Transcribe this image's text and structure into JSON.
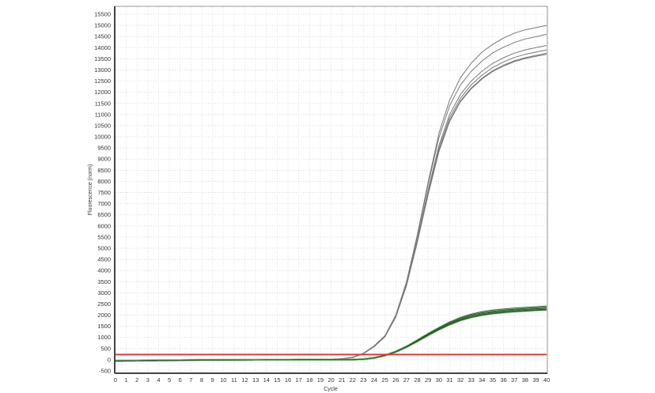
{
  "chart_data": {
    "type": "line",
    "title": "",
    "xlabel": "Cycle",
    "ylabel": "Fluorescence (norm)",
    "xlim": [
      0,
      40
    ],
    "ylim": [
      -500,
      15500
    ],
    "x_ticks": [
      0,
      1,
      2,
      3,
      4,
      5,
      6,
      7,
      8,
      9,
      10,
      11,
      12,
      13,
      14,
      15,
      16,
      17,
      18,
      19,
      20,
      21,
      22,
      23,
      24,
      25,
      26,
      27,
      28,
      29,
      30,
      31,
      32,
      33,
      34,
      35,
      36,
      37,
      38,
      39,
      40
    ],
    "y_ticks": [
      -500,
      0,
      500,
      1000,
      1500,
      2000,
      2500,
      3000,
      3500,
      4000,
      4500,
      5000,
      5500,
      6000,
      6500,
      7000,
      7500,
      8000,
      8500,
      9000,
      9500,
      10000,
      10500,
      11000,
      11500,
      12000,
      12500,
      13000,
      13500,
      14000,
      14500,
      15000,
      15500
    ],
    "grid": true,
    "threshold": {
      "value": 230,
      "color": "#e23a3a"
    },
    "colors": {
      "high_group": "#7a7a7a",
      "low_group": "#2f5f2f",
      "low_halo": "#9fd89f"
    },
    "x": [
      0,
      1,
      2,
      3,
      4,
      5,
      6,
      7,
      8,
      9,
      10,
      11,
      12,
      13,
      14,
      15,
      16,
      17,
      18,
      19,
      20,
      21,
      22,
      23,
      24,
      25,
      26,
      27,
      28,
      29,
      30,
      31,
      32,
      33,
      34,
      35,
      36,
      37,
      38,
      39,
      40
    ],
    "series": [
      {
        "group": "high",
        "values": [
          -60,
          -55,
          -50,
          -45,
          -40,
          -35,
          -30,
          -25,
          -20,
          -15,
          -10,
          -8,
          -5,
          -3,
          0,
          0,
          0,
          0,
          0,
          5,
          10,
          40,
          110,
          290,
          620,
          1080,
          2000,
          3500,
          5600,
          7950,
          10150,
          11650,
          12650,
          13300,
          13800,
          14150,
          14430,
          14650,
          14800,
          14900,
          15000
        ]
      },
      {
        "group": "high",
        "values": [
          -60,
          -55,
          -50,
          -45,
          -40,
          -35,
          -30,
          -25,
          -20,
          -15,
          -10,
          -8,
          -5,
          -3,
          0,
          0,
          0,
          0,
          0,
          5,
          10,
          40,
          110,
          285,
          610,
          1070,
          1990,
          3480,
          5550,
          7850,
          9950,
          11400,
          12320,
          12940,
          13400,
          13770,
          14020,
          14230,
          14390,
          14490,
          14600
        ]
      },
      {
        "group": "high",
        "values": [
          -60,
          -55,
          -50,
          -45,
          -40,
          -35,
          -30,
          -25,
          -20,
          -15,
          -10,
          -8,
          -5,
          -3,
          0,
          0,
          0,
          0,
          0,
          5,
          10,
          40,
          105,
          280,
          600,
          1050,
          1950,
          3400,
          5400,
          7600,
          9600,
          11000,
          11900,
          12500,
          12950,
          13300,
          13550,
          13750,
          13900,
          14000,
          14100
        ]
      },
      {
        "group": "high",
        "values": [
          -60,
          -55,
          -50,
          -45,
          -40,
          -35,
          -30,
          -25,
          -20,
          -15,
          -10,
          -8,
          -5,
          -3,
          0,
          0,
          0,
          0,
          0,
          5,
          10,
          40,
          105,
          275,
          595,
          1040,
          1930,
          3370,
          5340,
          7500,
          9470,
          10850,
          11730,
          12330,
          12770,
          13110,
          13360,
          13560,
          13700,
          13800,
          13900
        ]
      },
      {
        "group": "high",
        "values": [
          -60,
          -55,
          -50,
          -45,
          -40,
          -35,
          -30,
          -25,
          -20,
          -15,
          -10,
          -8,
          -5,
          -3,
          0,
          0,
          0,
          0,
          0,
          5,
          10,
          40,
          100,
          270,
          590,
          1030,
          1920,
          3340,
          5280,
          7420,
          9370,
          10730,
          11610,
          12190,
          12630,
          12970,
          13210,
          13410,
          13550,
          13650,
          13750
        ]
      },
      {
        "group": "high",
        "values": [
          -60,
          -55,
          -50,
          -45,
          -40,
          -35,
          -30,
          -25,
          -20,
          -15,
          -10,
          -8,
          -5,
          -3,
          0,
          0,
          0,
          0,
          0,
          5,
          10,
          40,
          100,
          270,
          585,
          1030,
          1910,
          3330,
          5260,
          7390,
          9330,
          10690,
          11570,
          12150,
          12590,
          12930,
          13170,
          13370,
          13510,
          13610,
          13700
        ]
      },
      {
        "group": "low",
        "values": [
          -50,
          -45,
          -40,
          -35,
          -30,
          -25,
          -20,
          -18,
          -15,
          -12,
          -10,
          -8,
          -6,
          -5,
          -4,
          -3,
          -2,
          -1,
          0,
          0,
          0,
          0,
          5,
          25,
          85,
          200,
          370,
          600,
          880,
          1170,
          1440,
          1690,
          1890,
          2040,
          2150,
          2220,
          2270,
          2310,
          2340,
          2370,
          2400
        ]
      },
      {
        "group": "low",
        "values": [
          -50,
          -45,
          -40,
          -35,
          -30,
          -25,
          -20,
          -18,
          -15,
          -12,
          -10,
          -8,
          -6,
          -5,
          -4,
          -3,
          -2,
          -1,
          0,
          0,
          0,
          0,
          5,
          22,
          82,
          195,
          362,
          590,
          860,
          1140,
          1410,
          1650,
          1850,
          2000,
          2100,
          2170,
          2220,
          2260,
          2290,
          2320,
          2350
        ]
      },
      {
        "group": "low",
        "values": [
          -50,
          -45,
          -40,
          -35,
          -30,
          -25,
          -20,
          -18,
          -15,
          -12,
          -10,
          -8,
          -6,
          -5,
          -4,
          -3,
          -2,
          -1,
          0,
          0,
          0,
          0,
          5,
          20,
          80,
          190,
          355,
          580,
          845,
          1120,
          1385,
          1620,
          1810,
          1955,
          2060,
          2130,
          2180,
          2220,
          2250,
          2280,
          2300
        ]
      },
      {
        "group": "low",
        "values": [
          -50,
          -45,
          -40,
          -35,
          -30,
          -25,
          -20,
          -18,
          -15,
          -12,
          -10,
          -8,
          -6,
          -5,
          -4,
          -3,
          -2,
          -1,
          0,
          0,
          0,
          0,
          5,
          20,
          80,
          190,
          350,
          570,
          830,
          1100,
          1360,
          1590,
          1780,
          1920,
          2020,
          2090,
          2140,
          2180,
          2210,
          2240,
          2260
        ]
      },
      {
        "group": "low",
        "values": [
          -50,
          -45,
          -40,
          -35,
          -30,
          -25,
          -20,
          -18,
          -15,
          -12,
          -10,
          -8,
          -6,
          -5,
          -4,
          -3,
          -2,
          -1,
          0,
          0,
          0,
          0,
          5,
          18,
          78,
          185,
          345,
          560,
          815,
          1085,
          1340,
          1570,
          1755,
          1895,
          1995,
          2060,
          2110,
          2150,
          2180,
          2210,
          2230
        ]
      }
    ]
  }
}
